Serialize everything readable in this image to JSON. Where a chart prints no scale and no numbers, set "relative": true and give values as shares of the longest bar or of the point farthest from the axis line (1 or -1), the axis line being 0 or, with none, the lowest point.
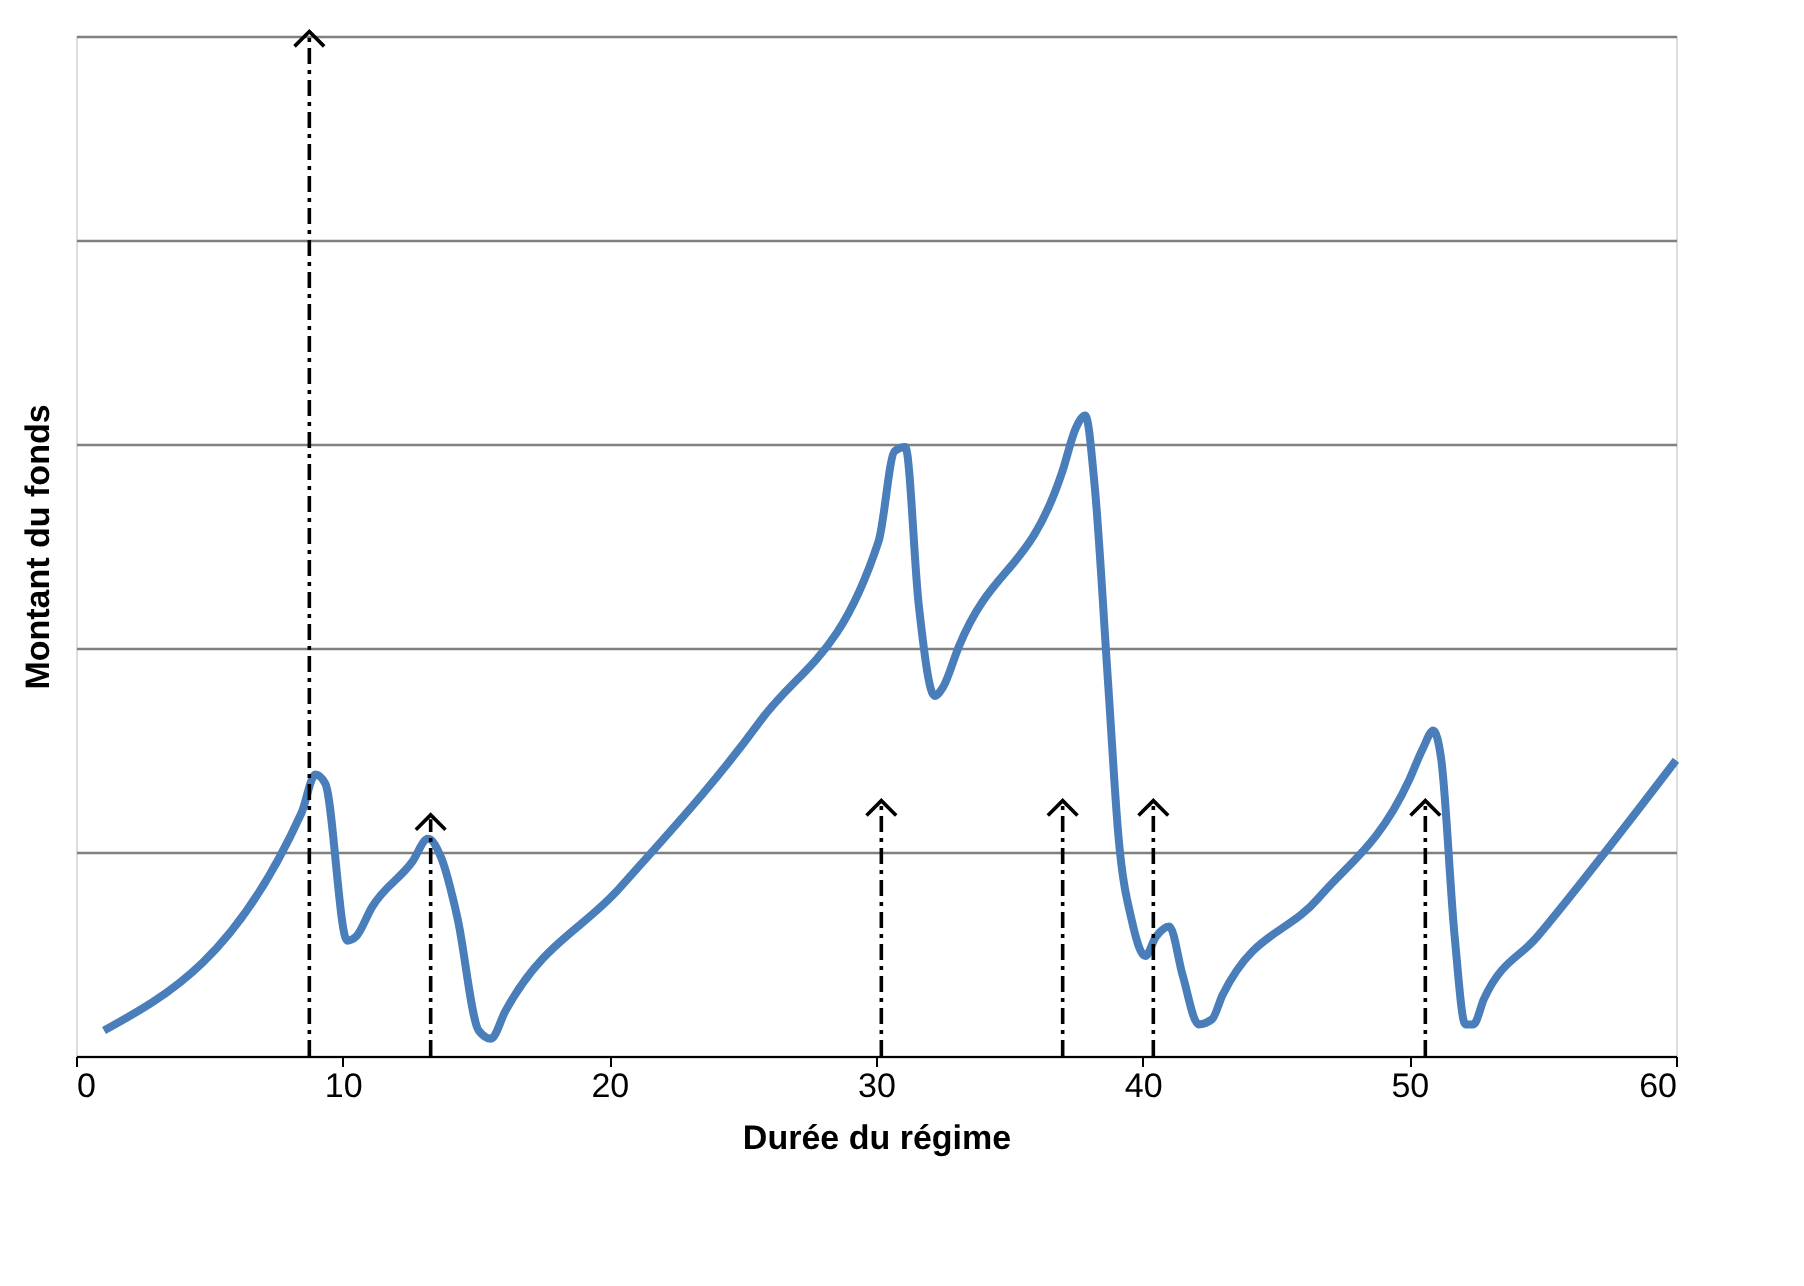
{
  "chart_data": {
    "type": "line",
    "xlabel": "Durée du régime",
    "ylabel": "Montant du fonds",
    "relative": true,
    "xlim": [
      0,
      60
    ],
    "xticks": [
      0,
      10,
      20,
      30,
      40,
      50,
      60
    ],
    "grid": "y",
    "marker": "none",
    "line_style": "solid",
    "series": [
      {
        "color": "#4a7ebb",
        "x": [
          1.05,
          8.45,
          8.98,
          9.35,
          10.17,
          10.5,
          11.1,
          12.6,
          13.2,
          13.7,
          14.3,
          15.1,
          15.56,
          16.1,
          20.4,
          25.65,
          30.1,
          30.7,
          31.1,
          31.6,
          32.2,
          32.5,
          33.1,
          37.0,
          37.5,
          37.85,
          38.2,
          38.7,
          39.1,
          39.6,
          40.1,
          40.5,
          41.0,
          41.5,
          42.1,
          42.6,
          43.0,
          46.6,
          50.0,
          50.5,
          50.9,
          51.2,
          51.7,
          52.1,
          52.4,
          52.8,
          54.8,
          60
        ],
        "values": [
          0.025,
          0.238,
          0.276,
          0.267,
          0.113,
          0.117,
          0.146,
          0.19,
          0.213,
          0.194,
          0.136,
          0.025,
          0.017,
          0.044,
          0.165,
          0.328,
          0.505,
          0.593,
          0.597,
          0.443,
          0.353,
          0.361,
          0.401,
          0.574,
          0.616,
          0.628,
          0.559,
          0.367,
          0.213,
          0.132,
          0.098,
          0.117,
          0.127,
          0.079,
          0.031,
          0.036,
          0.06,
          0.155,
          0.271,
          0.301,
          0.319,
          0.29,
          0.117,
          0.031,
          0.031,
          0.056,
          0.117,
          0.29
        ]
      },
      {
        "color": "#000000",
        "line_style": "dashed",
        "marker": "cross",
        "x": [
          8.75,
          8.75
        ],
        "values": [
          0,
          1
        ]
      },
      {
        "color": "#000000",
        "line_style": "dashed",
        "marker": "cross",
        "x": [
          13.3,
          13.3
        ],
        "values": [
          0,
          0.232
        ]
      },
      {
        "color": "#000000",
        "line_style": "dashed",
        "marker": "cross",
        "x": [
          30.2,
          30.2
        ],
        "values": [
          0,
          0.246
        ]
      },
      {
        "color": "#000000",
        "line_style": "dashed",
        "marker": "cross",
        "x": [
          37.0,
          37.0
        ],
        "values": [
          0,
          0.246
        ]
      },
      {
        "color": "#000000",
        "line_style": "dashed",
        "marker": "cross",
        "x": [
          40.4,
          40.4
        ],
        "values": [
          0,
          0.246
        ]
      },
      {
        "color": "#000000",
        "line_style": "dashed",
        "marker": "cross",
        "x": [
          50.6,
          50.6
        ],
        "values": [
          0,
          0.246
        ]
      }
    ]
  }
}
